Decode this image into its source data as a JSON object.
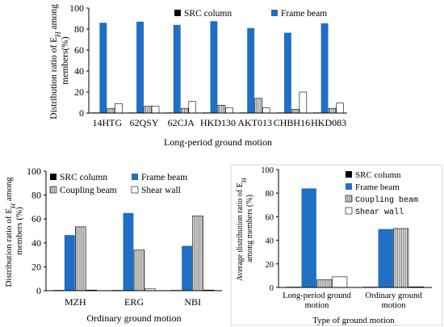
{
  "colors": {
    "src_column": "#000000",
    "frame_beam": "#1f6fc5",
    "coupling_beam": "#c8c8c8",
    "shear_wall": "#ffffff",
    "axis": "#000000"
  },
  "legend_labels": {
    "src_column": "SRC column",
    "frame_beam": "Frame beam",
    "coupling_beam": "Coupling beam",
    "shear_wall": "Shear wall"
  },
  "chart_data": [
    {
      "id": "top",
      "type": "bar",
      "xlabel": "Long-period ground motion",
      "ylabel_line1": "Distribution ratio of E",
      "ylabel_sub": "H",
      "ylabel_after": " among",
      "ylabel_line2": "members(%)",
      "ylim": [
        0,
        100
      ],
      "yticks": [
        0,
        20,
        40,
        60,
        80,
        100
      ],
      "grid": false,
      "legend": "top",
      "categories": [
        "14HTG",
        "62QSY",
        "62CJA",
        "HKD130",
        "AKT013",
        "CHBH16",
        "HKD083"
      ],
      "series": [
        {
          "key": "src_column",
          "name": "SRC column",
          "values": [
            0.5,
            0.5,
            0.5,
            0.5,
            0.5,
            0.5,
            0.5
          ]
        },
        {
          "key": "frame_beam",
          "name": "Frame beam",
          "values": [
            86,
            87,
            84,
            87.5,
            81,
            76.5,
            85.5
          ]
        },
        {
          "key": "coupling_beam",
          "name": "",
          "values": [
            4.5,
            6.5,
            4.5,
            7.5,
            14,
            3.5,
            4.5
          ]
        },
        {
          "key": "shear_wall",
          "name": "",
          "values": [
            9,
            6.5,
            11,
            5,
            5,
            20,
            9.5
          ]
        }
      ]
    },
    {
      "id": "bottom-left",
      "type": "bar",
      "xlabel": "Ordinary ground motion",
      "ylabel_line1": "Distribution ratio of E",
      "ylabel_sub": "H",
      "ylabel_after": " among",
      "ylabel_line2": "members (%)",
      "ylim": [
        0,
        100
      ],
      "yticks": [
        0,
        20,
        40,
        60,
        80,
        100
      ],
      "grid": false,
      "legend": "top",
      "categories": [
        "MZH",
        "ERG",
        "NBI"
      ],
      "series": [
        {
          "key": "src_column",
          "name": "SRC column",
          "values": [
            0.5,
            0.5,
            0.5
          ]
        },
        {
          "key": "frame_beam",
          "name": "Frame beam",
          "values": [
            46.5,
            65,
            37.5
          ]
        },
        {
          "key": "coupling_beam",
          "name": "Coupling beam",
          "values": [
            53.5,
            34,
            62.5
          ]
        },
        {
          "key": "shear_wall",
          "name": "Shear wall",
          "values": [
            0.5,
            1.5,
            0.5
          ]
        }
      ]
    },
    {
      "id": "bottom-right",
      "type": "bar",
      "xlabel": "Type of ground motion",
      "ylabel_line1": "Average distribution ratio of E",
      "ylabel_sub": "H",
      "ylabel_after": "",
      "ylabel_line2": "among members (%)",
      "ylim": [
        0,
        100
      ],
      "yticks": [
        0,
        20,
        40,
        60,
        80,
        100
      ],
      "grid": false,
      "legend": "top-right",
      "categories": [
        "Long-period ground motion",
        "Ordinary ground motion"
      ],
      "category_lines": [
        [
          "Long-period ground",
          "motion"
        ],
        [
          "Ordinary ground",
          "motion"
        ]
      ],
      "series": [
        {
          "key": "src_column",
          "name": "SRC column",
          "values": [
            0.5,
            0.5
          ]
        },
        {
          "key": "frame_beam",
          "name": "Frame beam",
          "values": [
            84,
            49.5
          ]
        },
        {
          "key": "coupling_beam",
          "name": "Coupling beam",
          "values": [
            6.5,
            50
          ]
        },
        {
          "key": "shear_wall",
          "name": "Shear wall",
          "values": [
            9,
            0.5
          ]
        }
      ]
    }
  ]
}
